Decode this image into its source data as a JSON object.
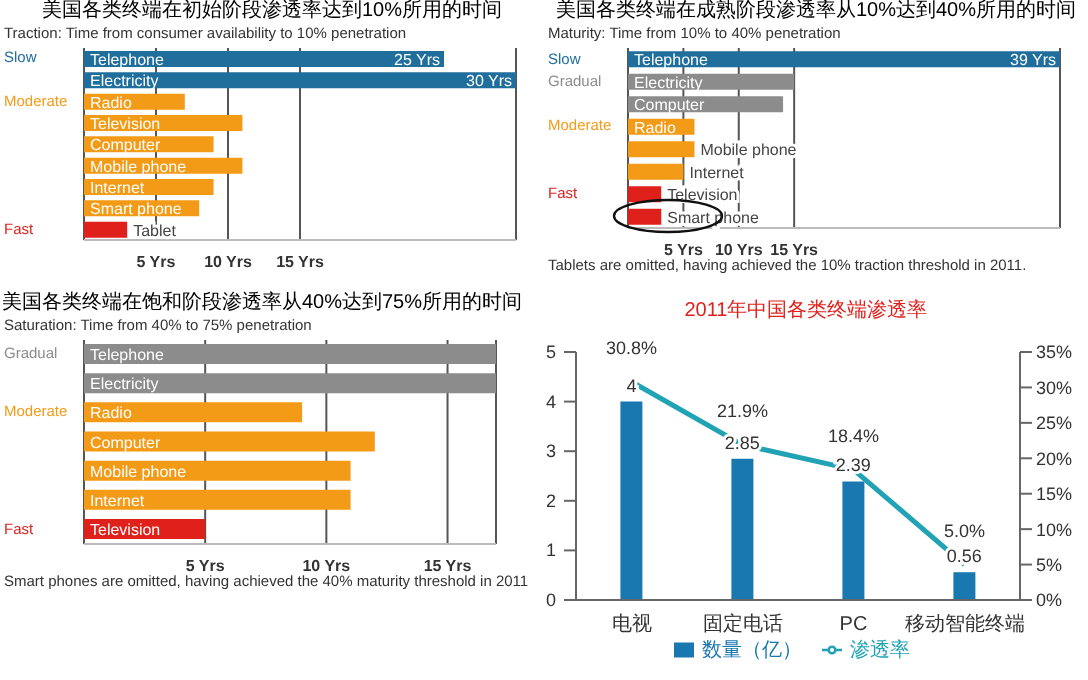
{
  "chart_data": [
    {
      "type": "bar",
      "orientation": "horizontal",
      "title": "美国各类终端在初始阶段渗透率达到10%所用的时间",
      "subtitle": "Traction: Time from consumer availability to 10% penetration",
      "categories": [
        "Telephone",
        "Electricity",
        "Radio",
        "Television",
        "Computer",
        "Mobile phone",
        "Internet",
        "Smart phone",
        "Tablet"
      ],
      "values": [
        25,
        30,
        7,
        11,
        9,
        11,
        9,
        8,
        3
      ],
      "colors": [
        "#1f6e9c",
        "#1f6e9c",
        "#f39a16",
        "#f39a16",
        "#f39a16",
        "#f39a16",
        "#f39a16",
        "#f39a16",
        "#e0201b"
      ],
      "value_labels": [
        "25 Yrs",
        "30 Yrs",
        null,
        null,
        null,
        null,
        null,
        null,
        null
      ],
      "xlim": [
        0,
        30
      ],
      "xticks": [
        {
          "value": 5,
          "label": "5 Yrs"
        },
        {
          "value": 10,
          "label": "10 Yrs"
        },
        {
          "value": 15,
          "label": "15 Yrs"
        }
      ],
      "grid": "x",
      "annotations": [
        "Slow",
        "Moderate",
        "Fast"
      ]
    },
    {
      "type": "bar",
      "orientation": "horizontal",
      "title": "美国各类终端在成熟阶段渗透率从10%达到40%所用的时间",
      "subtitle": "Maturity: Time from 10% to 40% penetration",
      "categories": [
        "Telephone",
        "Electricity",
        "Computer",
        "Radio",
        "Mobile phone",
        "Internet",
        "Television",
        "Smart phone"
      ],
      "values": [
        39,
        15,
        14,
        6,
        6,
        5,
        3,
        3
      ],
      "colors": [
        "#1f6e9c",
        "#8c8c8c",
        "#8c8c8c",
        "#f39a16",
        "#f39a16",
        "#f39a16",
        "#e0201b",
        "#e0201b"
      ],
      "value_labels": [
        "39 Yrs",
        null,
        null,
        null,
        null,
        null,
        null,
        null
      ],
      "xlim": [
        0,
        39
      ],
      "xticks": [
        {
          "value": 5,
          "label": "5 Yrs"
        },
        {
          "value": 10,
          "label": "10 Yrs"
        },
        {
          "value": 15,
          "label": "15 Yrs"
        }
      ],
      "grid": "x",
      "annotations": [
        "Slow",
        "Gradual",
        "Moderate",
        "Fast",
        "Tablets are omitted, having achieved the 10% traction threshold in 2011."
      ]
    },
    {
      "type": "bar",
      "orientation": "horizontal",
      "title": "美国各类终端在饱和阶段渗透率从40%达到75%所用的时间",
      "subtitle": "Saturation: Time from 40% to 75% penetration",
      "categories": [
        "Telephone",
        "Electricity",
        "Radio",
        "Computer",
        "Mobile phone",
        "Internet",
        "Television"
      ],
      "values": [
        17,
        17,
        9,
        12,
        11,
        11,
        5
      ],
      "colors": [
        "#8c8c8c",
        "#8c8c8c",
        "#f39a16",
        "#f39a16",
        "#f39a16",
        "#f39a16",
        "#e0201b"
      ],
      "xlim": [
        0,
        17
      ],
      "xticks": [
        {
          "value": 5,
          "label": "5 Yrs"
        },
        {
          "value": 10,
          "label": "10 Yrs"
        },
        {
          "value": 15,
          "label": "15 Yrs"
        }
      ],
      "grid": "x",
      "annotations": [
        "Gradual",
        "Moderate",
        "Fast",
        "Smart phones are omitted, having achieved the 40% maturity threshold in 2011"
      ]
    },
    {
      "type": "bar",
      "title": "2011年中国各类终端渗透率",
      "categories": [
        "电视",
        "固定电话",
        "PC",
        "移动智能终端"
      ],
      "series": [
        {
          "name": "数量（亿）",
          "type": "bar",
          "color": "#1a78b0",
          "values": [
            4,
            2.85,
            2.39,
            0.56
          ],
          "value_labels": [
            "4",
            "2.85",
            "2.39",
            "0.56"
          ]
        },
        {
          "name": "渗透率",
          "type": "line",
          "axis": "y2",
          "color": "#1fa3b5",
          "values": [
            30.8,
            21.9,
            18.4,
            5.0
          ],
          "value_labels": [
            "30.8%",
            "21.9%",
            "18.4%",
            "5.0%"
          ]
        }
      ],
      "ylim": [
        0,
        5
      ],
      "yticks": [
        0,
        1,
        2,
        3,
        4,
        5
      ],
      "y2lim": [
        0,
        35
      ],
      "y2ticks": [
        {
          "value": 0,
          "label": "0%"
        },
        {
          "value": 5,
          "label": "5%"
        },
        {
          "value": 10,
          "label": "10%"
        },
        {
          "value": 15,
          "label": "15%"
        },
        {
          "value": 20,
          "label": "20%"
        },
        {
          "value": 25,
          "label": "25%"
        },
        {
          "value": 30,
          "label": "30%"
        },
        {
          "value": 35,
          "label": "35%"
        }
      ],
      "legend": "bottom",
      "grid": false,
      "marker": "none"
    }
  ]
}
